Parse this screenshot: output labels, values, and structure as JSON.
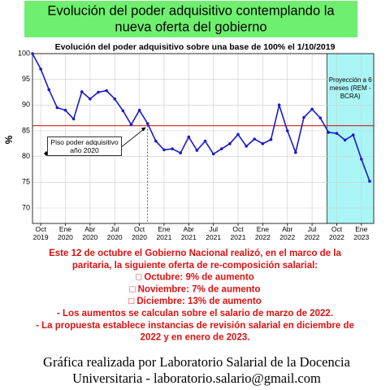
{
  "header": {
    "lines": [
      "Evolución del poder adquisitivo contemplando la",
      "nueva oferta del gobierno"
    ]
  },
  "chart_data": {
    "type": "line",
    "title": "Evolución del poder adquisitivo sobre una base de 100% el 1/10/2019",
    "ylabel": "%",
    "x": [
      0,
      1,
      2,
      3,
      4,
      5,
      6,
      7,
      8,
      9,
      10,
      11,
      12,
      13,
      14,
      15,
      16,
      17,
      18,
      19,
      20,
      21,
      22,
      23,
      24,
      25,
      26,
      27,
      28,
      29,
      30,
      31,
      32,
      33,
      34,
      35,
      36,
      37,
      38,
      39,
      40,
      41
    ],
    "series": [
      {
        "color": "#1a1acc",
        "values": [
          100,
          97,
          93,
          89.5,
          89,
          87.3,
          92.6,
          91.2,
          92.5,
          92.8,
          91.2,
          88.9,
          86.2,
          89,
          86.4,
          83,
          81.3,
          81.5,
          80.7,
          83.8,
          81.2,
          83,
          80.5,
          81.5,
          82.5,
          84.3,
          82,
          83.4,
          82.5,
          83.3,
          90,
          85,
          80.8,
          87.6,
          89.2,
          87.5,
          84.7,
          84.5,
          83.2,
          84.2,
          79.5,
          75.2
        ]
      }
    ],
    "xlim": [
      0,
      41.5
    ],
    "xticks": [
      {
        "value": 1,
        "label": "Oct 2019"
      },
      {
        "value": 4,
        "label": "Ene 2020"
      },
      {
        "value": 7,
        "label": "Abr 2020"
      },
      {
        "value": 10,
        "label": "Jul 2020"
      },
      {
        "value": 13,
        "label": "Oct 2020"
      },
      {
        "value": 16,
        "label": "Ene 2021"
      },
      {
        "value": 19,
        "label": "Abr 2021"
      },
      {
        "value": 22,
        "label": "Jul 2021"
      },
      {
        "value": 25,
        "label": "Oct 2021"
      },
      {
        "value": 28,
        "label": "Ene 2022"
      },
      {
        "value": 31,
        "label": "Abr 2022"
      },
      {
        "value": 34,
        "label": "Jul 2022"
      },
      {
        "value": 37,
        "label": "Oct 2022"
      },
      {
        "value": 40,
        "label": "Ene 2023"
      }
    ],
    "ylim": [
      67,
      100
    ],
    "yticks": [
      70,
      75,
      80,
      85,
      90,
      95,
      100
    ],
    "grid": true,
    "reference_line": {
      "value": 86,
      "color": "#cc2222"
    },
    "floor_x": 14,
    "floor_label": "Piso poder adquisitivo año 2020",
    "projection": {
      "start": 35.8,
      "color": "#aaf6f6",
      "label": "Proyección a 6 meses (REM - BCRA)"
    }
  },
  "notice": {
    "lines": [
      "Este 12 de octubre el Gobierno Nacional  realizó, en el marco de la",
      "paritaria, la siguiente oferta de re-composición salarial:",
      "□ Octubre: 9% de aumento",
      "□ Noviembre: 7% de aumento",
      "□ Diciembre: 13% de aumento",
      "- Los aumentos se calculan sobre el salario de marzo de 2022.",
      "- La propuesta establece instancias de revisión salarial en diciembre de",
      "2022 y en enero de 2023."
    ]
  },
  "footer": {
    "lines": [
      "Gráfica realizada por Laboratorio Salarial de la Docencia",
      "Universitaria - laboratorio.salario@gmail.com"
    ]
  }
}
